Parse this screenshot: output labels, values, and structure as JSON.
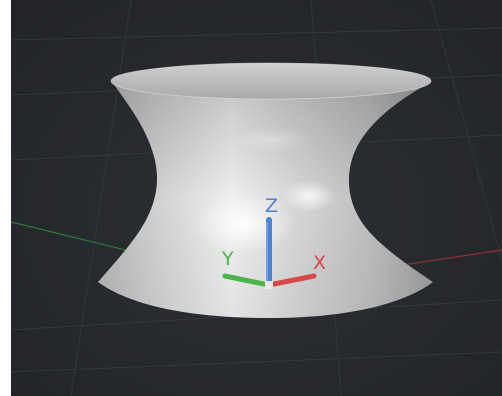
{
  "viewport": {
    "background_color": "#26282c",
    "grid_color": "#3a3d42",
    "surface": {
      "shape": "hyperboloid-of-one-sheet",
      "color": "#d6d6d6"
    },
    "world_axes": {
      "x_color": "#a8383a",
      "y_color": "#3a9a3a"
    },
    "gizmo": {
      "x_label": "X",
      "y_label": "Y",
      "z_label": "Z",
      "x_color": "#d84848",
      "y_color": "#4ab44a",
      "z_color": "#4a82d6"
    }
  }
}
